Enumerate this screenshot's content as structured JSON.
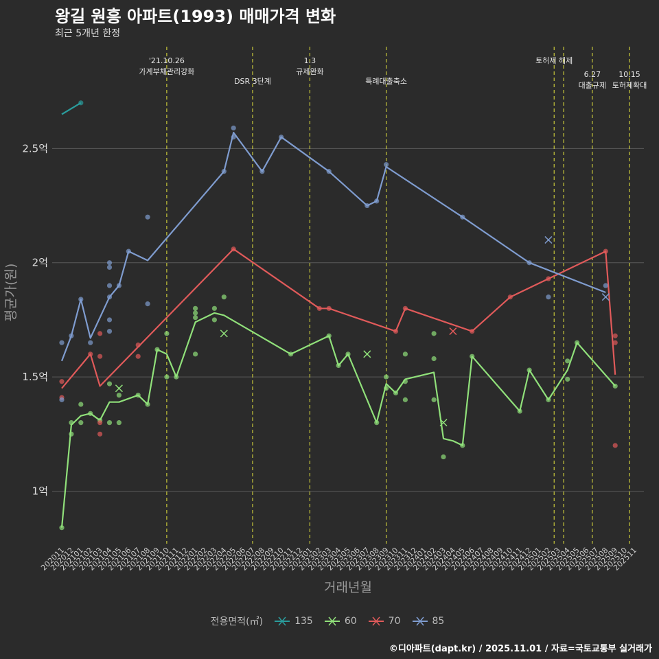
{
  "header": {
    "title": "왕길 원흥 아파트(1993) 매매가격 변화",
    "subtitle": "최근 5개년 한정"
  },
  "footer": {
    "credit": "©디아파트(dapt.kr) / 2025.11.01 / 자료=국토교통부 실거래가"
  },
  "legend": {
    "title": "전용면적(㎡)",
    "items": [
      {
        "label": "135",
        "color": "#2a9d9d"
      },
      {
        "label": "60",
        "color": "#90e07a"
      },
      {
        "label": "70",
        "color": "#e05a5a"
      },
      {
        "label": "85",
        "color": "#7f9ccf"
      }
    ]
  },
  "chart_data": {
    "type": "line",
    "title": "왕길 원흥 아파트(1993) 매매가격 변화",
    "subtitle": "최근 5개년 한정",
    "xlabel": "거래년월",
    "ylabel": "평균가(원)",
    "ylim": [
      0.77,
      2.97
    ],
    "yticks": [
      {
        "value": 1.0,
        "label": "1억"
      },
      {
        "value": 1.5,
        "label": "1.5억"
      },
      {
        "value": 2.0,
        "label": "2억"
      },
      {
        "value": 2.5,
        "label": "2.5억"
      }
    ],
    "categories": [
      "202011",
      "202012",
      "202101",
      "202102",
      "202103",
      "202104",
      "202105",
      "202106",
      "202107",
      "202108",
      "202109",
      "202110",
      "202111",
      "202112",
      "202201",
      "202202",
      "202203",
      "202204",
      "202205",
      "202206",
      "202207",
      "202208",
      "202209",
      "202210",
      "202211",
      "202212",
      "202301",
      "202302",
      "202303",
      "202304",
      "202305",
      "202306",
      "202307",
      "202308",
      "202309",
      "202310",
      "202311",
      "202312",
      "202401",
      "202402",
      "202403",
      "202404",
      "202405",
      "202406",
      "202407",
      "202408",
      "202409",
      "202410",
      "202411",
      "202412",
      "202501",
      "202502",
      "202503",
      "202504",
      "202505",
      "202506",
      "202507",
      "202508",
      "202509",
      "202510",
      "202511"
    ],
    "events": [
      {
        "x": 11.0,
        "label": "'21.10.26\n가계부채관리강화",
        "row": 0
      },
      {
        "x": 20.0,
        "label": "DSR 3단계",
        "row": 1
      },
      {
        "x": 26.0,
        "label": "1.3\n규제완화",
        "row": 0
      },
      {
        "x": 34.0,
        "label": "특례대출축소",
        "row": 1
      },
      {
        "x": 51.6,
        "label": "토허제 해제",
        "row": 0
      },
      {
        "x": 52.6,
        "label": "",
        "row": 0
      },
      {
        "x": 55.6,
        "label": "6.27\n대출규제",
        "row": 2
      },
      {
        "x": 59.5,
        "label": "10.15\n토허제확대",
        "row": 2
      }
    ],
    "series": [
      {
        "name": "135",
        "color": "#2a9d9d",
        "line": [
          [
            0,
            2.65
          ],
          [
            2,
            2.7
          ]
        ],
        "points": [
          [
            2,
            2.7
          ]
        ],
        "cancelled": []
      },
      {
        "name": "60",
        "color": "#90e07a",
        "line": [
          [
            0,
            0.84
          ],
          [
            1,
            1.29
          ],
          [
            2,
            1.33
          ],
          [
            3,
            1.34
          ],
          [
            4,
            1.31
          ],
          [
            5,
            1.39
          ],
          [
            6,
            1.39
          ],
          [
            8,
            1.42
          ],
          [
            9,
            1.38
          ],
          [
            10,
            1.62
          ],
          [
            11,
            1.6
          ],
          [
            12,
            1.5
          ],
          [
            14,
            1.74
          ],
          [
            16,
            1.78
          ],
          [
            17,
            1.77
          ],
          [
            24,
            1.6
          ],
          [
            28,
            1.68
          ],
          [
            29,
            1.55
          ],
          [
            30,
            1.6
          ],
          [
            33,
            1.3
          ],
          [
            34,
            1.47
          ],
          [
            35,
            1.43
          ],
          [
            36,
            1.49
          ],
          [
            39,
            1.52
          ],
          [
            40,
            1.23
          ],
          [
            41,
            1.22
          ],
          [
            42,
            1.2
          ],
          [
            43,
            1.59
          ],
          [
            48,
            1.35
          ],
          [
            49,
            1.53
          ],
          [
            51,
            1.4
          ],
          [
            53,
            1.53
          ],
          [
            54,
            1.65
          ],
          [
            58,
            1.46
          ]
        ],
        "points": [
          [
            0,
            0.84
          ],
          [
            1,
            1.3
          ],
          [
            1,
            1.25
          ],
          [
            2,
            1.38
          ],
          [
            2,
            1.3
          ],
          [
            3,
            1.34
          ],
          [
            4,
            1.31
          ],
          [
            5,
            1.47
          ],
          [
            5,
            1.3
          ],
          [
            6,
            1.42
          ],
          [
            6,
            1.3
          ],
          [
            8,
            1.42
          ],
          [
            9,
            1.38
          ],
          [
            10,
            1.62
          ],
          [
            11,
            1.69
          ],
          [
            11,
            1.5
          ],
          [
            12,
            1.5
          ],
          [
            14,
            1.8
          ],
          [
            14,
            1.78
          ],
          [
            14,
            1.76
          ],
          [
            14,
            1.6
          ],
          [
            16,
            1.8
          ],
          [
            16,
            1.75
          ],
          [
            17,
            1.85
          ],
          [
            24,
            1.6
          ],
          [
            28,
            1.68
          ],
          [
            29,
            1.55
          ],
          [
            30,
            1.6
          ],
          [
            33,
            1.3
          ],
          [
            34,
            1.5
          ],
          [
            34,
            1.45
          ],
          [
            35,
            1.43
          ],
          [
            36,
            1.6
          ],
          [
            36,
            1.48
          ],
          [
            36,
            1.4
          ],
          [
            39,
            1.69
          ],
          [
            39,
            1.58
          ],
          [
            39,
            1.4
          ],
          [
            40,
            1.15
          ],
          [
            42,
            1.2
          ],
          [
            43,
            1.59
          ],
          [
            48,
            1.35
          ],
          [
            49,
            1.53
          ],
          [
            51,
            1.4
          ],
          [
            53,
            1.57
          ],
          [
            53,
            1.49
          ],
          [
            54,
            1.65
          ],
          [
            58,
            1.46
          ]
        ],
        "cancelled": [
          [
            6,
            1.45
          ],
          [
            17,
            1.69
          ],
          [
            32,
            1.6
          ],
          [
            40,
            1.3
          ]
        ]
      },
      {
        "name": "70",
        "color": "#e05a5a",
        "line": [
          [
            0,
            1.45
          ],
          [
            3,
            1.6
          ],
          [
            4,
            1.46
          ],
          [
            18,
            2.06
          ],
          [
            27,
            1.8
          ],
          [
            28,
            1.8
          ],
          [
            35,
            1.7
          ],
          [
            36,
            1.8
          ],
          [
            43,
            1.7
          ],
          [
            47,
            1.85
          ],
          [
            57,
            2.05
          ],
          [
            58,
            1.51
          ]
        ],
        "points": [
          [
            0,
            1.48
          ],
          [
            0,
            1.41
          ],
          [
            3,
            1.6
          ],
          [
            4,
            1.69
          ],
          [
            4,
            1.59
          ],
          [
            4,
            1.3
          ],
          [
            4,
            1.25
          ],
          [
            8,
            1.64
          ],
          [
            8,
            1.59
          ],
          [
            18,
            2.06
          ],
          [
            27,
            1.8
          ],
          [
            28,
            1.8
          ],
          [
            35,
            1.7
          ],
          [
            36,
            1.8
          ],
          [
            43,
            1.7
          ],
          [
            47,
            1.85
          ],
          [
            51,
            1.93
          ],
          [
            57,
            2.05
          ],
          [
            58,
            1.68
          ],
          [
            58,
            1.65
          ],
          [
            58,
            1.2
          ]
        ],
        "cancelled": [
          [
            41,
            1.7
          ]
        ]
      },
      {
        "name": "85",
        "color": "#7f9ccf",
        "line": [
          [
            0,
            1.57
          ],
          [
            1,
            1.68
          ],
          [
            2,
            1.84
          ],
          [
            3,
            1.67
          ],
          [
            5,
            1.85
          ],
          [
            6,
            1.9
          ],
          [
            7,
            2.05
          ],
          [
            9,
            2.01
          ],
          [
            17,
            2.4
          ],
          [
            18,
            2.57
          ],
          [
            21,
            2.4
          ],
          [
            23,
            2.55
          ],
          [
            28,
            2.4
          ],
          [
            32,
            2.25
          ],
          [
            33,
            2.27
          ],
          [
            34,
            2.42
          ],
          [
            42,
            2.2
          ],
          [
            49,
            2.0
          ],
          [
            57,
            1.87
          ]
        ],
        "points": [
          [
            0,
            1.65
          ],
          [
            0,
            1.4
          ],
          [
            1,
            1.68
          ],
          [
            2,
            1.84
          ],
          [
            3,
            1.65
          ],
          [
            5,
            2.0
          ],
          [
            5,
            1.98
          ],
          [
            5,
            1.9
          ],
          [
            5,
            1.85
          ],
          [
            5,
            1.75
          ],
          [
            5,
            1.7
          ],
          [
            6,
            1.9
          ],
          [
            7,
            2.05
          ],
          [
            9,
            2.2
          ],
          [
            9,
            1.82
          ],
          [
            17,
            2.4
          ],
          [
            18,
            2.59
          ],
          [
            18,
            2.55
          ],
          [
            21,
            2.4
          ],
          [
            23,
            2.55
          ],
          [
            28,
            2.4
          ],
          [
            32,
            2.25
          ],
          [
            33,
            2.27
          ],
          [
            34,
            2.43
          ],
          [
            42,
            2.2
          ],
          [
            49,
            2.0
          ],
          [
            51,
            1.85
          ],
          [
            57,
            1.9
          ]
        ],
        "cancelled": [
          [
            51,
            2.1
          ],
          [
            57,
            1.85
          ]
        ]
      }
    ]
  }
}
